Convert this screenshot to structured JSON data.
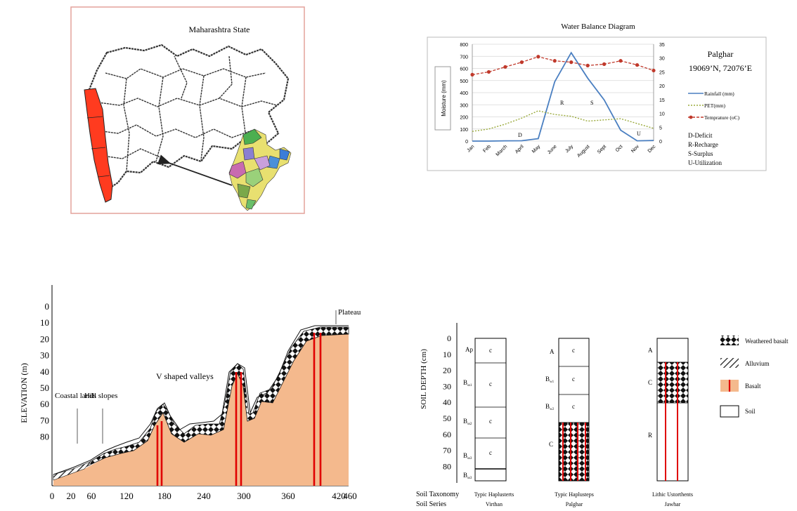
{
  "map": {
    "title": "Maharashtra State",
    "coast_color": "#ff3b1f",
    "arrow_icon": "arrow-left-icon"
  },
  "water_balance": {
    "title": "Water Balance Diagram",
    "station": "Palghar",
    "coords": "19069’N, 72076’E",
    "y_left_label": "Moisture (mm)",
    "legend": {
      "rainfall": "Rainfall (mm)",
      "pet": "PET(mm)",
      "temp": "Temprature (oC)"
    },
    "key": [
      "D-Deficit",
      "R-Recharge",
      "S-Surplus",
      "U-Utilization"
    ],
    "zone_labels": [
      "D",
      "R",
      "S",
      "U"
    ],
    "colors": {
      "rainfall": "#4a7fc1",
      "pet": "#9aaa3c",
      "temp": "#c0392b"
    }
  },
  "chart_data": [
    {
      "type": "line",
      "title": "Water Balance Diagram",
      "categories": [
        "Jan",
        "Feb",
        "March",
        "April",
        "May",
        "June",
        "July",
        "August",
        "Sept",
        "Oct",
        "Nov",
        "Dec"
      ],
      "ylabel": "Moisture (mm)",
      "ylim": [
        0,
        800
      ],
      "yticks": [
        0,
        100,
        200,
        300,
        400,
        500,
        600,
        700,
        800
      ],
      "y2lim": [
        0,
        35
      ],
      "y2ticks": [
        0,
        5,
        10,
        15,
        20,
        25,
        30,
        35
      ],
      "series": [
        {
          "name": "Rainfall (mm)",
          "axis": "left",
          "values": [
            0,
            0,
            2,
            3,
            20,
            490,
            730,
            520,
            340,
            90,
            2,
            5
          ]
        },
        {
          "name": "PET(mm)",
          "axis": "left",
          "values": [
            80,
            100,
            140,
            190,
            250,
            220,
            205,
            165,
            175,
            185,
            145,
            105
          ]
        },
        {
          "name": "Temprature (oC)",
          "axis": "right",
          "values": [
            24,
            25,
            26.8,
            28.5,
            30.5,
            29,
            28.5,
            27.3,
            27.8,
            29,
            27.5,
            25.5
          ]
        }
      ],
      "grid": true,
      "legend": "right"
    }
  ],
  "elevation": {
    "y_label": "ELEVATION (m)",
    "yticks": [
      "0",
      "10",
      "20",
      "30",
      "40",
      "50",
      "60",
      "70",
      "80"
    ],
    "xticks": [
      "0",
      "20",
      "60",
      "120",
      "180",
      "240",
      "300",
      "360",
      "420",
      "460"
    ],
    "labels": {
      "coastal": "Coastal lands",
      "hill": "Hill slopes",
      "valleys": "V shaped valleys",
      "plateau": "Plateau"
    },
    "colors": {
      "basalt": "#f4b98d",
      "dyke": "#e00000"
    }
  },
  "soil": {
    "y_label": "SOIL DEPTH (cm)",
    "yticks": [
      "0",
      "10",
      "20",
      "30",
      "40",
      "50",
      "60",
      "70",
      "80"
    ],
    "taxonomy_label": "Soil Taxonomy",
    "series_label": "Soil Series",
    "profiles": [
      {
        "taxonomy": "Typic Haplusterts",
        "series": "Virthan",
        "horizons": [
          "Ap",
          "Bss1",
          "Bss2",
          "Bss3",
          "Bss3"
        ],
        "cells": [
          "c",
          "c",
          "c",
          "c"
        ]
      },
      {
        "taxonomy": "Typic Haplusteps",
        "series": "Palghar",
        "horizons": [
          "A",
          "Bw1",
          "Bw2",
          "C"
        ],
        "cells": [
          "c",
          "c",
          "c"
        ]
      },
      {
        "taxonomy": "Lithic Ustorthents",
        "series": "Jawhar",
        "horizons": [
          "A",
          "C",
          "R"
        ],
        "cells": []
      }
    ],
    "legend": [
      "Weathered basalt",
      "Alluvium",
      "Basalt",
      "Soil"
    ]
  }
}
